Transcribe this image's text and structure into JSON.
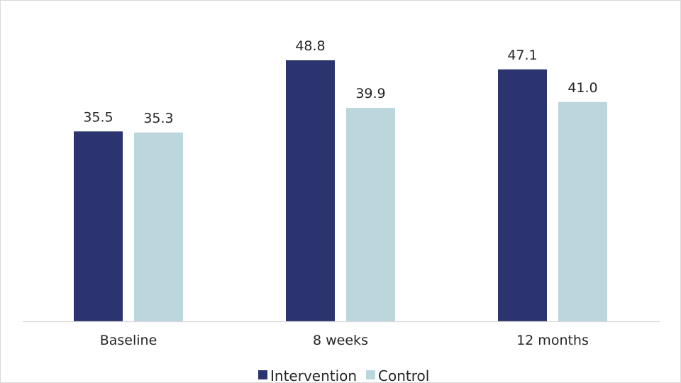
{
  "chart_data": {
    "type": "bar",
    "categories": [
      "Baseline",
      "8 weeks",
      "12 months"
    ],
    "series": [
      {
        "name": "Intervention",
        "color": "#2b346e",
        "values": [
          35.5,
          48.8,
          47.1
        ],
        "labels": [
          "35.5",
          "48.8",
          "47.1"
        ]
      },
      {
        "name": "Control",
        "color": "#bcd6de",
        "values": [
          35.3,
          39.9,
          41.0
        ],
        "labels": [
          "35.3",
          "39.9",
          "41.0"
        ]
      }
    ],
    "title": "",
    "xlabel": "",
    "ylabel": "",
    "ylim": [
      0,
      55
    ],
    "grid": false,
    "legend": "bottom-center",
    "axis_color": "#d9d9d9"
  }
}
